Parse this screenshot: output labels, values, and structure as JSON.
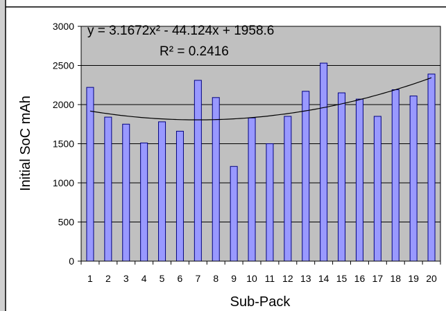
{
  "colors": {
    "plot_background": "#c0c0c0",
    "bar_fill": "#9999ff",
    "bar_stroke": "#000080",
    "trendline": "#000000",
    "gridline": "#000000"
  },
  "chart_data": {
    "type": "bar",
    "title": "",
    "xlabel": "Sub-Pack",
    "ylabel": "Initial SoC mAh",
    "ylim": [
      0,
      3000
    ],
    "yticks": [
      0,
      500,
      1000,
      1500,
      2000,
      2500,
      3000
    ],
    "grid": "horizontal major gridlines",
    "legend": "none",
    "categories": [
      "1",
      "2",
      "3",
      "4",
      "5",
      "6",
      "7",
      "8",
      "9",
      "10",
      "11",
      "12",
      "13",
      "14",
      "15",
      "16",
      "17",
      "18",
      "19",
      "20"
    ],
    "values": [
      2220,
      1840,
      1750,
      1510,
      1780,
      1660,
      2310,
      2090,
      1210,
      1830,
      1500,
      1850,
      2170,
      2530,
      2150,
      2070,
      1850,
      2190,
      2110,
      2390
    ],
    "trendline": {
      "type": "polynomial-2",
      "coefficients": [
        3.1672,
        -44.124,
        1958.6
      ],
      "equation_label": "y = 3.1672x² - 44.124x + 1958.6",
      "r2_label": "R² = 0.2416"
    }
  }
}
